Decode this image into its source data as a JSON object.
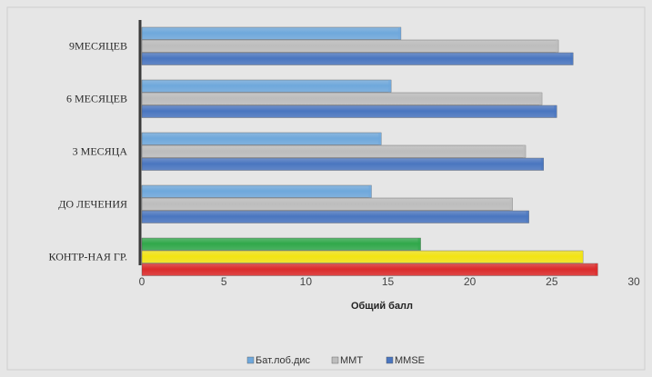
{
  "chart_data": {
    "type": "bar",
    "orientation": "horizontal",
    "categories": [
      "9МЕСЯЦЕВ",
      "6 МЕСЯЦЕВ",
      "3 МЕСЯЦА",
      "ДО ЛЕЧЕНИЯ",
      "КОНТР-НАЯ ГР."
    ],
    "series": [
      {
        "name": "Бат.лоб.дис",
        "values": [
          15.8,
          15.2,
          14.6,
          14.0,
          17.0
        ],
        "color": "#6fa8dc"
      },
      {
        "name": "MMT",
        "values": [
          25.4,
          24.4,
          23.4,
          22.6,
          26.9
        ],
        "color": "#bdbdbd"
      },
      {
        "name": "MMSE",
        "values": [
          26.3,
          25.3,
          24.5,
          23.6,
          27.8
        ],
        "color": "#4a76c0"
      }
    ],
    "category_override_colors": {
      "КОНТР-НАЯ ГР.": [
        "#30a84a",
        "#f2e413",
        "#dc2b2b"
      ]
    },
    "xlabel": "Общий балл",
    "ylabel": "",
    "xlim": [
      0,
      30
    ],
    "xticks": [
      0,
      5,
      10,
      15,
      20,
      25,
      30
    ],
    "grid": false,
    "legend_position": "bottom",
    "background": "#e6e6e6"
  }
}
